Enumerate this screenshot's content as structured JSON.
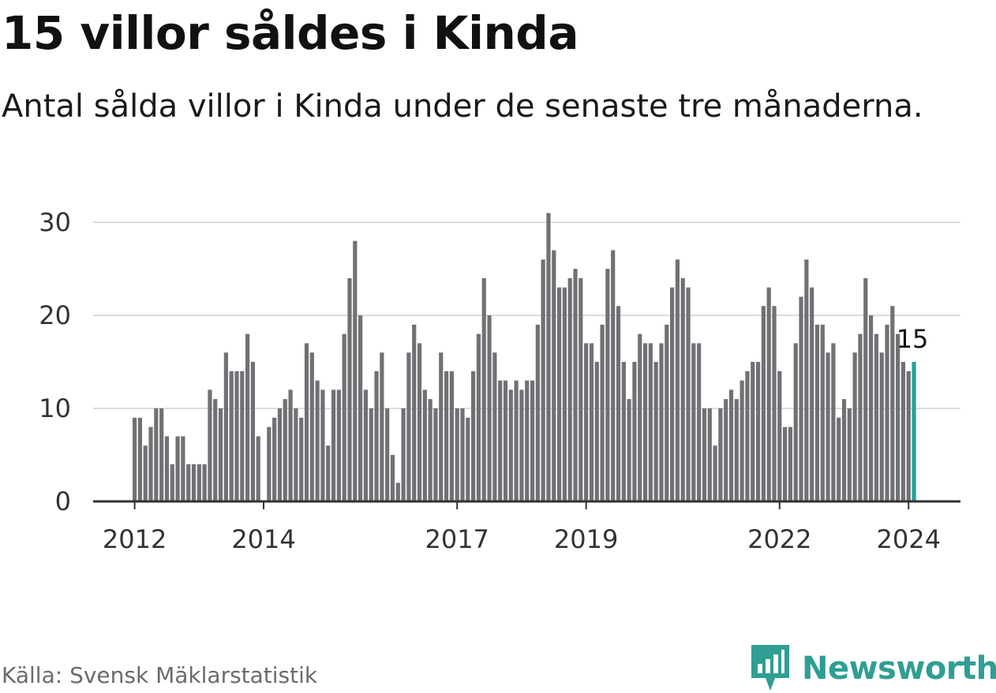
{
  "header": {
    "title": "15 villor såldes i Kinda",
    "subtitle": "Antal sålda villor i Kinda under de senaste tre månaderna."
  },
  "footer": {
    "source": "Källa: Svensk Mäklarstatistik",
    "brand": "Newsworthy"
  },
  "colors": {
    "bar": "#707075",
    "highlight": "#22a39a",
    "grid": "#dddddd",
    "axis": "#333333"
  },
  "chart_data": {
    "type": "bar",
    "title": "15 villor såldes i Kinda",
    "subtitle": "Antal sålda villor i Kinda under de senaste tre månaderna.",
    "xlabel": "",
    "ylabel": "",
    "ylim": [
      0,
      32
    ],
    "yticks": [
      0,
      10,
      20,
      30
    ],
    "grid": true,
    "x_tick_labels": [
      {
        "label": "2012",
        "index": 0
      },
      {
        "label": "2014",
        "index": 24
      },
      {
        "label": "2017",
        "index": 60
      },
      {
        "label": "2019",
        "index": 84
      },
      {
        "label": "2022",
        "index": 120
      },
      {
        "label": "2024",
        "index": 144
      }
    ],
    "start": "2012-01",
    "highlight_index": 145,
    "highlight_label": "15",
    "values": [
      9,
      9,
      6,
      8,
      10,
      10,
      7,
      4,
      7,
      7,
      4,
      4,
      4,
      4,
      12,
      11,
      10,
      16,
      14,
      14,
      14,
      18,
      15,
      7,
      0,
      8,
      9,
      10,
      11,
      12,
      10,
      9,
      17,
      16,
      13,
      12,
      6,
      12,
      12,
      18,
      24,
      28,
      20,
      12,
      10,
      14,
      16,
      10,
      5,
      2,
      10,
      16,
      19,
      17,
      12,
      11,
      10,
      16,
      14,
      14,
      10,
      10,
      9,
      14,
      18,
      24,
      20,
      16,
      13,
      13,
      12,
      13,
      12,
      13,
      13,
      19,
      26,
      31,
      27,
      23,
      23,
      24,
      25,
      24,
      17,
      17,
      15,
      19,
      25,
      27,
      21,
      15,
      11,
      15,
      18,
      17,
      17,
      15,
      17,
      19,
      23,
      26,
      24,
      23,
      17,
      17,
      10,
      10,
      6,
      10,
      11,
      12,
      11,
      13,
      14,
      15,
      15,
      21,
      23,
      21,
      14,
      8,
      8,
      17,
      22,
      26,
      23,
      19,
      19,
      16,
      17,
      9,
      11,
      10,
      16,
      18,
      24,
      20,
      18,
      16,
      19,
      21,
      18,
      15,
      14,
      15
    ]
  }
}
